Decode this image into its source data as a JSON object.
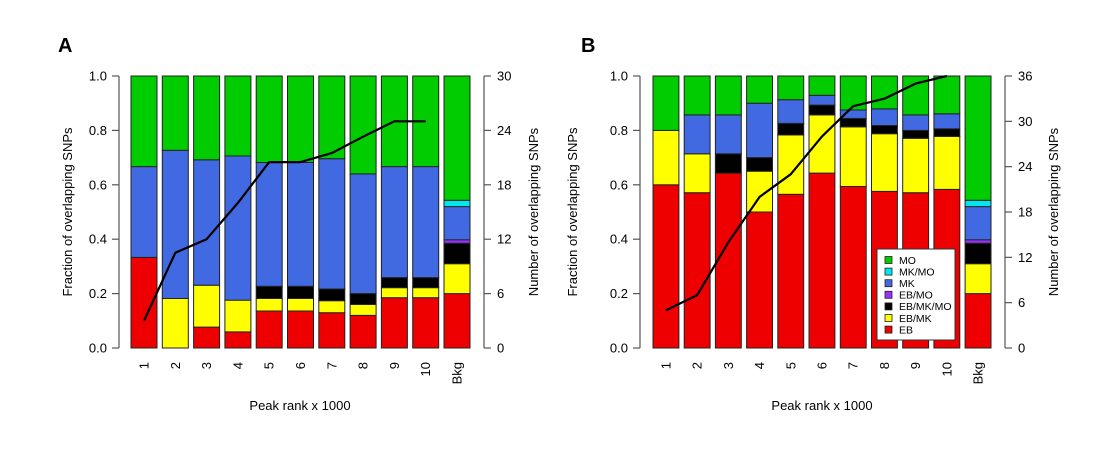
{
  "chart_data": [
    {
      "panel": "A",
      "type": "bar",
      "stacked": true,
      "title": "",
      "xlabel": "Peak rank x 1000",
      "ylabel": "Fraction of overlapping SNPs",
      "y2label": "Number of overlapping SNPs",
      "ylim": [
        0,
        1
      ],
      "y2lim": [
        0,
        30
      ],
      "yticks": [
        "0.0",
        "0.2",
        "0.4",
        "0.6",
        "0.8",
        "1.0"
      ],
      "y2ticks": [
        "0",
        "6",
        "12",
        "18",
        "24",
        "30"
      ],
      "categories": [
        "1",
        "2",
        "3",
        "4",
        "5",
        "6",
        "7",
        "8",
        "9",
        "10",
        "Bkg"
      ],
      "series": [
        {
          "name": "EB",
          "color": "#ee0000",
          "values": [
            0.333,
            0.0,
            0.077,
            0.059,
            0.136,
            0.136,
            0.13,
            0.12,
            0.185,
            0.185,
            0.2
          ]
        },
        {
          "name": "EB/MK",
          "color": "#ffff00",
          "values": [
            0.0,
            0.182,
            0.154,
            0.117,
            0.046,
            0.046,
            0.044,
            0.04,
            0.037,
            0.037,
            0.11
          ]
        },
        {
          "name": "EB/MK/MO",
          "color": "#000000",
          "values": [
            0.0,
            0.0,
            0.0,
            0.0,
            0.045,
            0.045,
            0.043,
            0.04,
            0.037,
            0.037,
            0.075
          ]
        },
        {
          "name": "EB/MO",
          "color": "#9b30ff",
          "values": [
            0.0,
            0.0,
            0.0,
            0.0,
            0.0,
            0.0,
            0.0,
            0.0,
            0.0,
            0.0,
            0.013
          ]
        },
        {
          "name": "MK",
          "color": "#4169e1",
          "values": [
            0.334,
            0.545,
            0.461,
            0.53,
            0.455,
            0.455,
            0.479,
            0.44,
            0.408,
            0.408,
            0.122
          ]
        },
        {
          "name": "MK/MO",
          "color": "#00e5ee",
          "values": [
            0.0,
            0.0,
            0.0,
            0.0,
            0.0,
            0.0,
            0.0,
            0.0,
            0.0,
            0.0,
            0.023
          ]
        },
        {
          "name": "MO",
          "color": "#00cc00",
          "values": [
            0.333,
            0.273,
            0.308,
            0.294,
            0.318,
            0.318,
            0.304,
            0.36,
            0.333,
            0.333,
            0.457
          ]
        }
      ],
      "line": {
        "name": "Number of overlapping SNPs",
        "axis": "y2",
        "values": [
          3,
          10.5,
          12,
          16,
          20.5,
          20.5,
          21.5,
          23.3,
          25,
          25
        ]
      },
      "legend": "none"
    },
    {
      "panel": "B",
      "type": "bar",
      "stacked": true,
      "title": "",
      "xlabel": "Peak rank x 1000",
      "ylabel": "Fraction of overlapping SNPs",
      "y2label": "Number of overlapping SNPs",
      "ylim": [
        0,
        1
      ],
      "y2lim": [
        0,
        36
      ],
      "yticks": [
        "0.0",
        "0.2",
        "0.4",
        "0.6",
        "0.8",
        "1.0"
      ],
      "y2ticks": [
        "0",
        "6",
        "12",
        "18",
        "24",
        "30",
        "36"
      ],
      "categories": [
        "1",
        "2",
        "3",
        "4",
        "5",
        "6",
        "7",
        "8",
        "9",
        "10",
        "Bkg"
      ],
      "series": [
        {
          "name": "EB",
          "color": "#ee0000",
          "values": [
            0.6,
            0.571,
            0.643,
            0.5,
            0.565,
            0.643,
            0.594,
            0.576,
            0.571,
            0.583,
            0.2
          ]
        },
        {
          "name": "EB/MK",
          "color": "#ffff00",
          "values": [
            0.2,
            0.143,
            0.0,
            0.15,
            0.218,
            0.214,
            0.219,
            0.212,
            0.2,
            0.195,
            0.11
          ]
        },
        {
          "name": "EB/MK/MO",
          "color": "#000000",
          "values": [
            0.0,
            0.0,
            0.071,
            0.05,
            0.043,
            0.036,
            0.031,
            0.03,
            0.029,
            0.028,
            0.075
          ]
        },
        {
          "name": "EB/MO",
          "color": "#9b30ff",
          "values": [
            0.0,
            0.0,
            0.0,
            0.0,
            0.0,
            0.0,
            0.0,
            0.0,
            0.0,
            0.0,
            0.013
          ]
        },
        {
          "name": "MK",
          "color": "#4169e1",
          "values": [
            0.0,
            0.143,
            0.143,
            0.2,
            0.087,
            0.036,
            0.031,
            0.061,
            0.057,
            0.055,
            0.122
          ]
        },
        {
          "name": "MK/MO",
          "color": "#00e5ee",
          "values": [
            0.0,
            0.0,
            0.0,
            0.0,
            0.0,
            0.0,
            0.0,
            0.0,
            0.0,
            0.0,
            0.023
          ]
        },
        {
          "name": "MO",
          "color": "#00cc00",
          "values": [
            0.2,
            0.143,
            0.143,
            0.1,
            0.087,
            0.071,
            0.125,
            0.121,
            0.143,
            0.139,
            0.457
          ]
        }
      ],
      "line": {
        "name": "Number of overlapping SNPs",
        "axis": "y2",
        "values": [
          5,
          7,
          14,
          20,
          23,
          28,
          32,
          33,
          35,
          36
        ]
      },
      "legend": "bottom-right",
      "legend_entries": [
        "MO",
        "MK/MO",
        "MK",
        "EB/MO",
        "EB/MK/MO",
        "EB/MK",
        "EB"
      ]
    }
  ]
}
